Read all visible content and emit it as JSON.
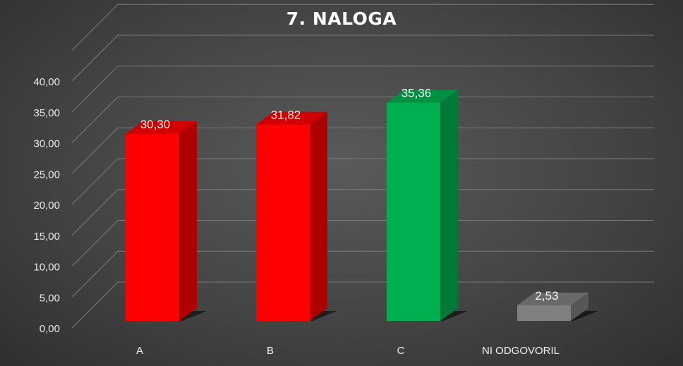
{
  "chart_data": {
    "type": "bar",
    "title": "7. NALOGA",
    "categories": [
      "A",
      "B",
      "C",
      "NI ODGOVORIL"
    ],
    "values": [
      30.3,
      31.82,
      35.36,
      2.53
    ],
    "data_labels": [
      "30,30",
      "31,82",
      "35,36",
      "2,53"
    ],
    "bar_colors": [
      "#ff0000",
      "#ff0000",
      "#00b050",
      "#808080"
    ],
    "y_ticks": [
      "0,00",
      "5,00",
      "10,00",
      "15,00",
      "20,00",
      "25,00",
      "30,00",
      "35,00",
      "40,00"
    ],
    "ylim": [
      0,
      40
    ],
    "grid": true,
    "style": "3d-columns"
  }
}
